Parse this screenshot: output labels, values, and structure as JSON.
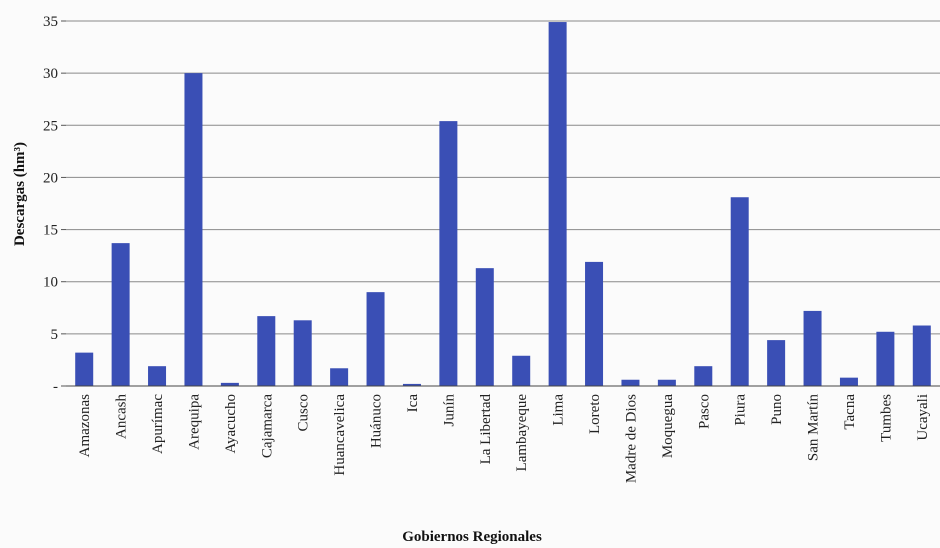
{
  "chart_data": {
    "type": "bar",
    "title": "",
    "xlabel": "Gobiernos Regionales",
    "ylabel": "Descargas (hm³)",
    "ylim": [
      0,
      35
    ],
    "yticks": [
      {
        "value": 0,
        "label": "-"
      },
      {
        "value": 5,
        "label": "5"
      },
      {
        "value": 10,
        "label": "10"
      },
      {
        "value": 15,
        "label": "15"
      },
      {
        "value": 20,
        "label": "20"
      },
      {
        "value": 25,
        "label": "25"
      },
      {
        "value": 30,
        "label": "30"
      },
      {
        "value": 35,
        "label": "35"
      }
    ],
    "grid": true,
    "bar_color": "#3a4fb5",
    "categories": [
      "Amazonas",
      "Ancash",
      "Apurímac",
      "Arequipa",
      "Ayacucho",
      "Cajamarca",
      "Cusco",
      "Huancavelica",
      "Huánuco",
      "Ica",
      "Junín",
      "La Libertad",
      "Lambayeque",
      "Lima",
      "Loreto",
      "Madre de Dios",
      "Moquegua",
      "Pasco",
      "Piura",
      "Puno",
      "San Martín",
      "Tacna",
      "Tumbes",
      "Ucayali"
    ],
    "values": [
      3.2,
      13.7,
      1.9,
      30.0,
      0.3,
      6.7,
      6.3,
      1.7,
      9.0,
      0.2,
      25.4,
      11.3,
      2.9,
      34.9,
      11.9,
      0.6,
      0.6,
      1.9,
      18.1,
      4.4,
      7.2,
      0.8,
      5.2,
      5.8
    ]
  }
}
